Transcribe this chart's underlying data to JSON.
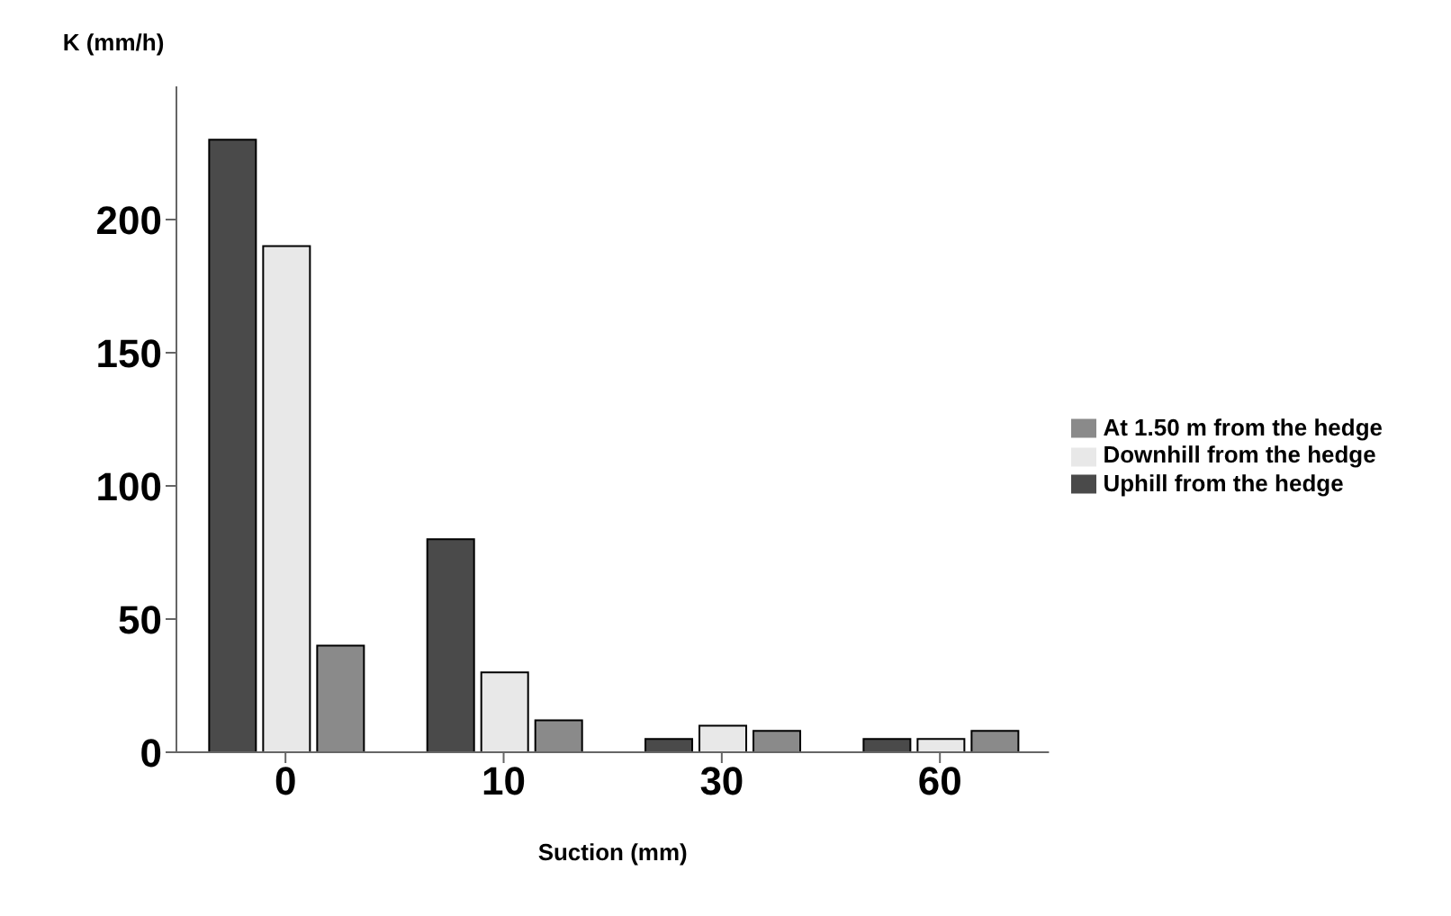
{
  "chart_data": {
    "type": "bar",
    "xlabel": "Suction (mm)",
    "ylabel": "K (mm/h)",
    "categories": [
      "0",
      "10",
      "30",
      "60"
    ],
    "series": [
      {
        "name": "Uphill from the hedge",
        "color": "#4a4a4a",
        "values": [
          230,
          80,
          5,
          5
        ]
      },
      {
        "name": "Downhill from the hedge",
        "color": "#e8e8e8",
        "values": [
          190,
          30,
          10,
          5
        ]
      },
      {
        "name": "At 1.50 m from the hedge",
        "color": "#8a8a8a",
        "values": [
          40,
          12,
          8,
          8
        ]
      }
    ],
    "ylim": [
      0,
      250
    ],
    "yticks": [
      0,
      50,
      100,
      150,
      200
    ],
    "grid": false,
    "legend": "right"
  }
}
